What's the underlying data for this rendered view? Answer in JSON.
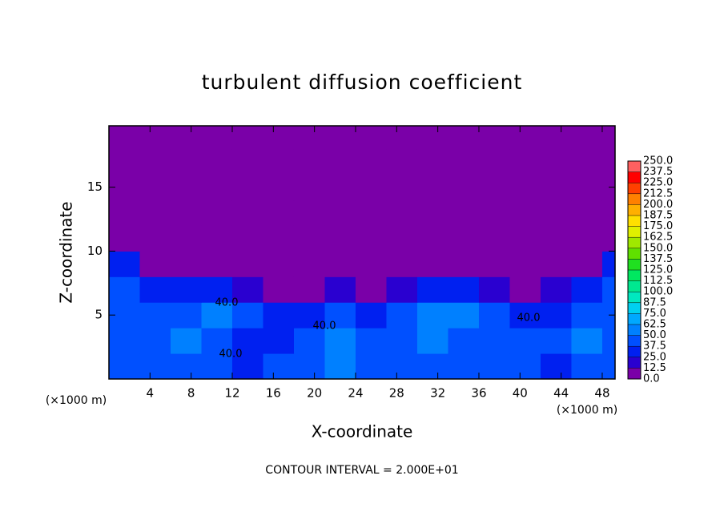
{
  "chart_data": {
    "type": "heatmap",
    "title": "turbulent diffusion coefficient",
    "x_label": "X-coordinate",
    "y_label": "Z-coordinate",
    "x_unit_left": "(×1000 m)",
    "x_unit_right": "(×1000 m)",
    "footer": "CONTOUR INTERVAL = 2.000E+01",
    "annotations": [
      "40.0",
      "40.0",
      "40.0",
      "40.0"
    ],
    "xlim": [
      0,
      49.25
    ],
    "ylim": [
      0,
      19.8
    ],
    "xticks": [
      4,
      8,
      12,
      16,
      20,
      24,
      28,
      32,
      36,
      40,
      44,
      48
    ],
    "yticks": [
      5,
      10,
      15
    ],
    "x": [
      1.5,
      4.5,
      7.5,
      10.5,
      13.5,
      16.5,
      19.5,
      22.5,
      25.5,
      28.5,
      31.5,
      34.5,
      37.5,
      40.5,
      43.5,
      46.5,
      49.5
    ],
    "z": [
      1,
      3,
      5,
      7,
      9,
      11,
      13,
      15,
      17,
      19
    ],
    "values": [
      [
        45,
        40,
        45,
        40,
        35,
        40,
        45,
        55,
        45,
        40,
        45,
        40,
        45,
        40,
        35,
        40,
        45
      ],
      [
        40,
        45,
        55,
        45,
        35,
        35,
        40,
        50,
        45,
        45,
        55,
        45,
        40,
        40,
        45,
        50,
        45
      ],
      [
        45,
        40,
        45,
        50,
        40,
        30,
        35,
        40,
        35,
        45,
        50,
        50,
        40,
        35,
        35,
        45,
        45
      ],
      [
        40,
        30,
        25,
        25,
        20,
        10,
        10,
        15,
        10,
        20,
        35,
        30,
        20,
        10,
        15,
        30,
        40
      ],
      [
        30,
        10,
        0,
        0,
        0,
        0,
        0,
        0,
        0,
        0,
        0,
        0,
        0,
        0,
        0,
        10,
        30
      ],
      [
        0,
        0,
        0,
        0,
        0,
        0,
        0,
        0,
        0,
        0,
        0,
        0,
        0,
        0,
        0,
        0,
        0
      ],
      [
        0,
        0,
        0,
        0,
        0,
        0,
        0,
        0,
        0,
        0,
        0,
        0,
        0,
        0,
        0,
        0,
        0
      ],
      [
        0,
        0,
        0,
        0,
        0,
        0,
        0,
        0,
        0,
        0,
        0,
        0,
        0,
        0,
        0,
        0,
        0
      ],
      [
        0,
        0,
        0,
        0,
        0,
        0,
        0,
        0,
        0,
        0,
        0,
        0,
        0,
        0,
        0,
        0,
        0
      ],
      [
        0,
        0,
        0,
        0,
        0,
        0,
        0,
        0,
        0,
        0,
        0,
        0,
        0,
        0,
        0,
        0,
        0
      ]
    ],
    "colorbar": {
      "levels": [
        {
          "value": 0,
          "label": "0.0"
        },
        {
          "value": 12.5,
          "label": "12.5"
        },
        {
          "value": 25,
          "label": "25.0"
        },
        {
          "value": 37.5,
          "label": "37.5"
        },
        {
          "value": 50,
          "label": "50.0"
        },
        {
          "value": 62.5,
          "label": "62.5"
        },
        {
          "value": 75,
          "label": "75.0"
        },
        {
          "value": 87.5,
          "label": "87.5"
        },
        {
          "value": 100,
          "label": "100.0"
        },
        {
          "value": 112.5,
          "label": "112.5"
        },
        {
          "value": 125,
          "label": "125.0"
        },
        {
          "value": 137.5,
          "label": "137.5"
        },
        {
          "value": 150,
          "label": "150.0"
        },
        {
          "value": 162.5,
          "label": "162.5"
        },
        {
          "value": 175,
          "label": "175.0"
        },
        {
          "value": 187.5,
          "label": "187.5"
        },
        {
          "value": 200,
          "label": "200.0"
        },
        {
          "value": 212.5,
          "label": "212.5"
        },
        {
          "value": 225,
          "label": "225.0"
        },
        {
          "value": 237.5,
          "label": "237.5"
        },
        {
          "value": 250,
          "label": "250.0"
        }
      ],
      "colors": [
        "#7a00a8",
        "#2a00d0",
        "#0020f0",
        "#0050ff",
        "#0080ff",
        "#00a8ff",
        "#00d0f0",
        "#00e8c0",
        "#00e890",
        "#00e860",
        "#20e020",
        "#60e000",
        "#a0e800",
        "#e0f000",
        "#ffe000",
        "#ffb000",
        "#ff8000",
        "#ff4000",
        "#ff0000",
        "#ff6060"
      ]
    }
  }
}
